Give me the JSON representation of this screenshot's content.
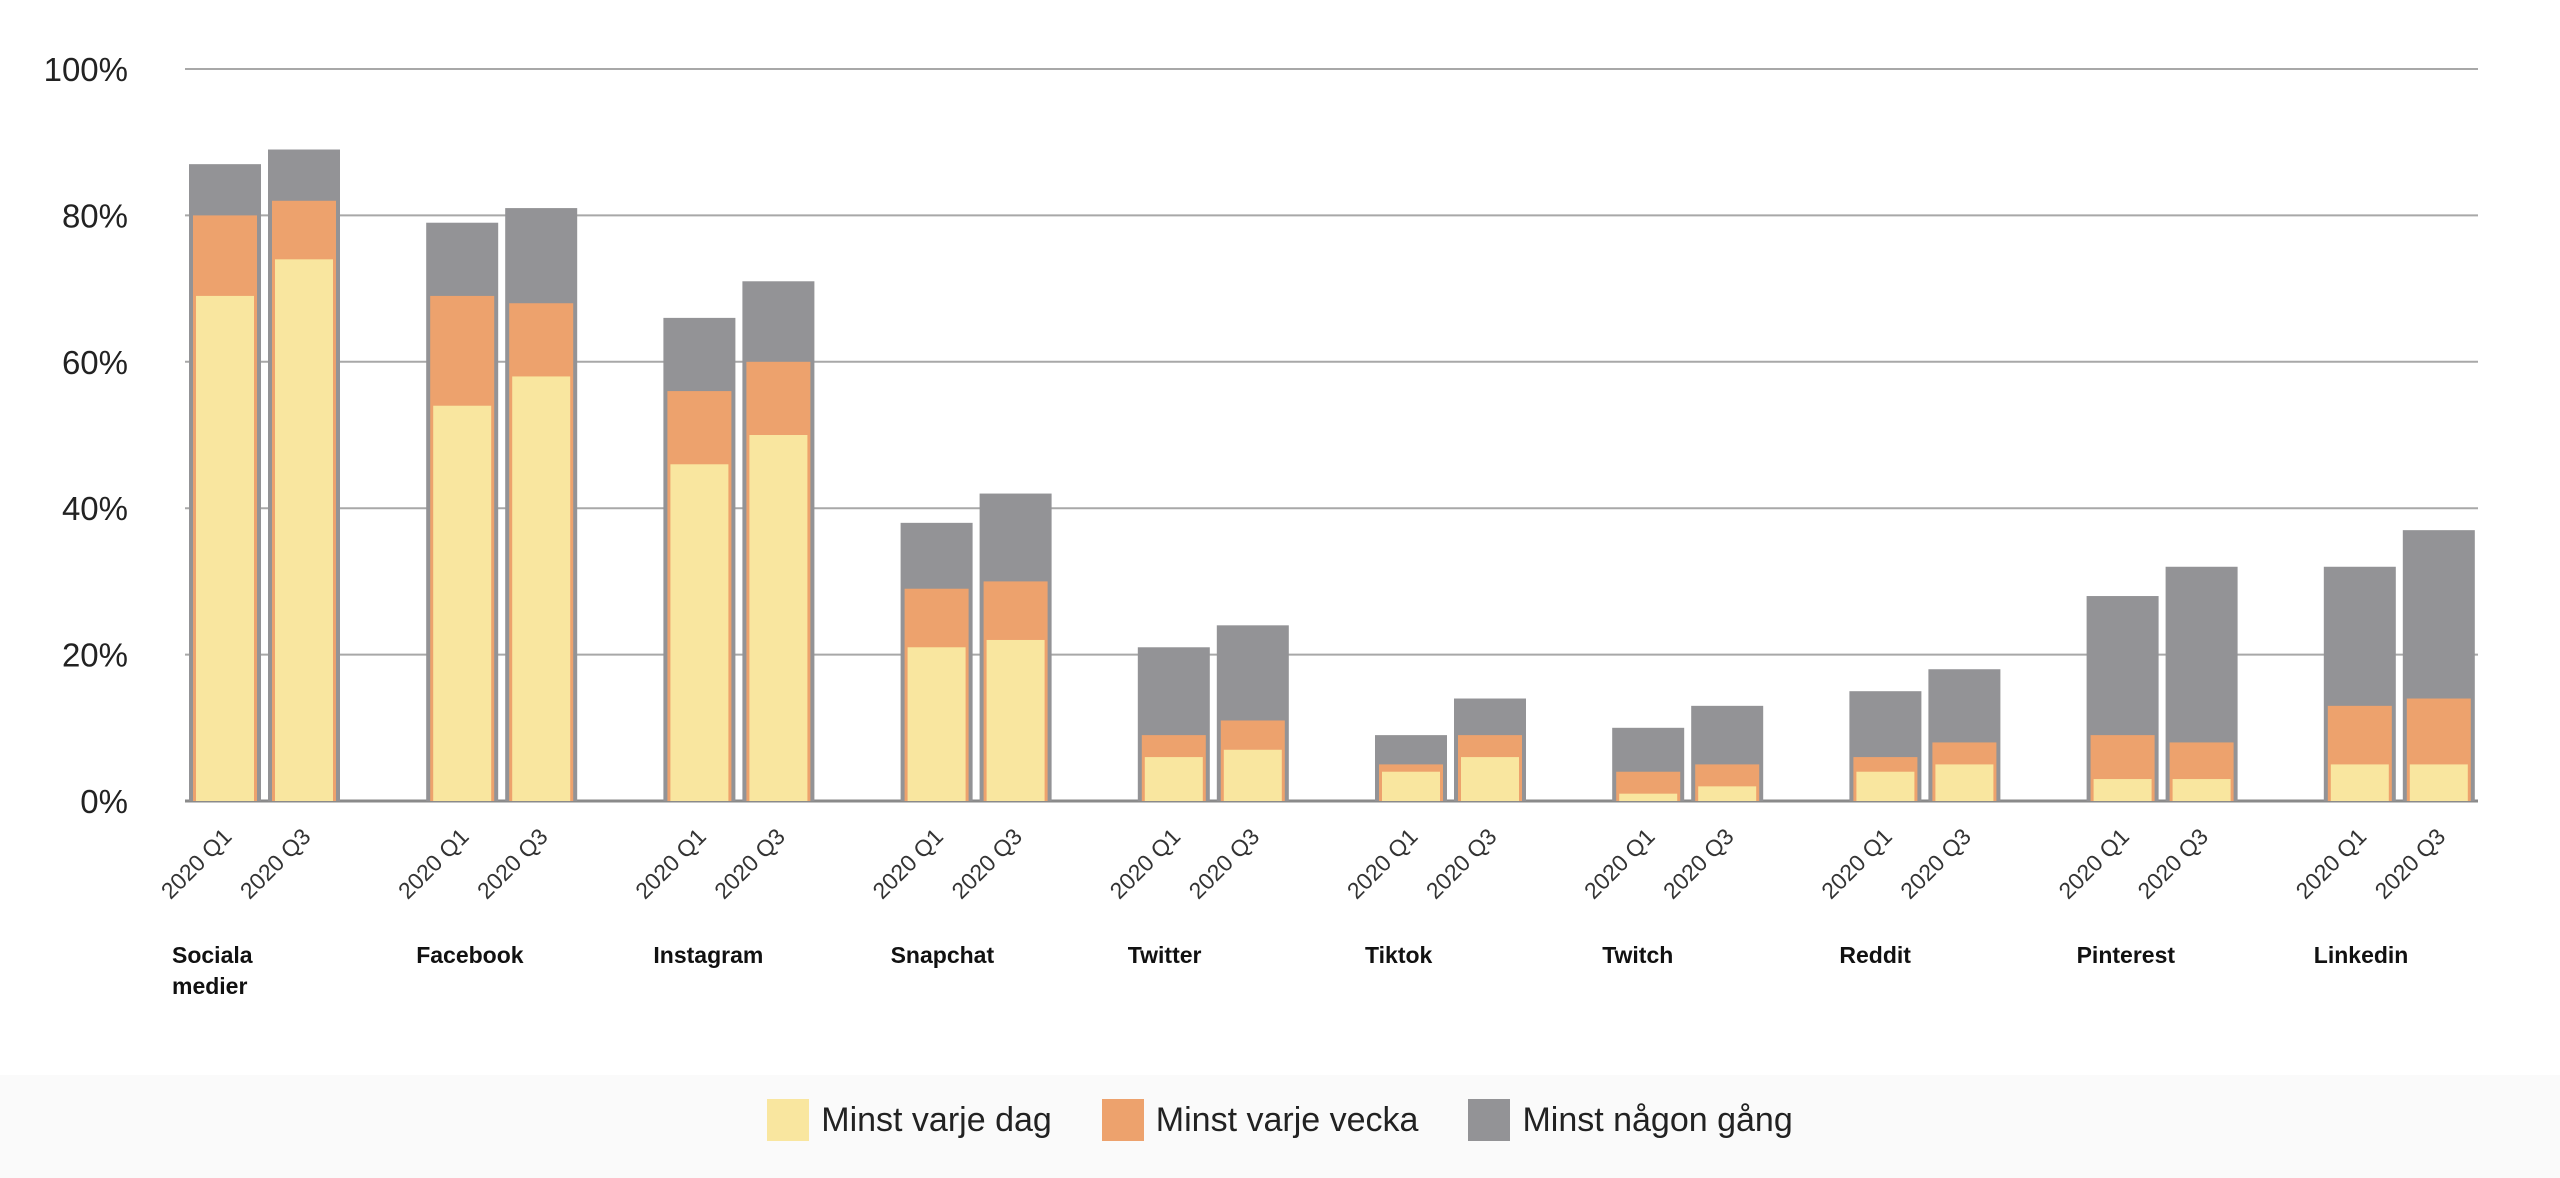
{
  "chart_data": {
    "type": "bar",
    "stacked": true,
    "title": "",
    "xlabel": "",
    "ylabel": "",
    "ylim": [
      0,
      100
    ],
    "yticks": [
      "0%",
      "20%",
      "40%",
      "60%",
      "80%",
      "100%"
    ],
    "grid": true,
    "legend_position": "bottom-center",
    "groups": [
      "Sociala medier",
      "Facebook",
      "Instagram",
      "Snapchat",
      "Twitter",
      "Tiktok",
      "Twitch",
      "Reddit",
      "Pinterest",
      "Linkedin"
    ],
    "periods": [
      "2020 Q1",
      "2020 Q3"
    ],
    "series": [
      {
        "name": "Minst varje dag",
        "color": "#f9e69f",
        "values": [
          [
            69,
            74
          ],
          [
            54,
            58
          ],
          [
            46,
            50
          ],
          [
            21,
            22
          ],
          [
            6,
            7
          ],
          [
            4,
            6
          ],
          [
            1,
            2
          ],
          [
            4,
            5
          ],
          [
            3,
            3
          ],
          [
            5,
            5
          ]
        ]
      },
      {
        "name": "Minst varje vecka",
        "color": "#eda26d",
        "values": [
          [
            80,
            82
          ],
          [
            69,
            68
          ],
          [
            56,
            60
          ],
          [
            29,
            30
          ],
          [
            9,
            11
          ],
          [
            5,
            9
          ],
          [
            4,
            5
          ],
          [
            6,
            8
          ],
          [
            9,
            8
          ],
          [
            13,
            14
          ]
        ]
      },
      {
        "name": "Minst någon gång",
        "color": "#939396",
        "values": [
          [
            87,
            89
          ],
          [
            79,
            81
          ],
          [
            66,
            71
          ],
          [
            38,
            42
          ],
          [
            21,
            24
          ],
          [
            9,
            14
          ],
          [
            10,
            13
          ],
          [
            15,
            18
          ],
          [
            28,
            32
          ],
          [
            32,
            37
          ]
        ]
      }
    ],
    "value_note": "cumulative"
  }
}
